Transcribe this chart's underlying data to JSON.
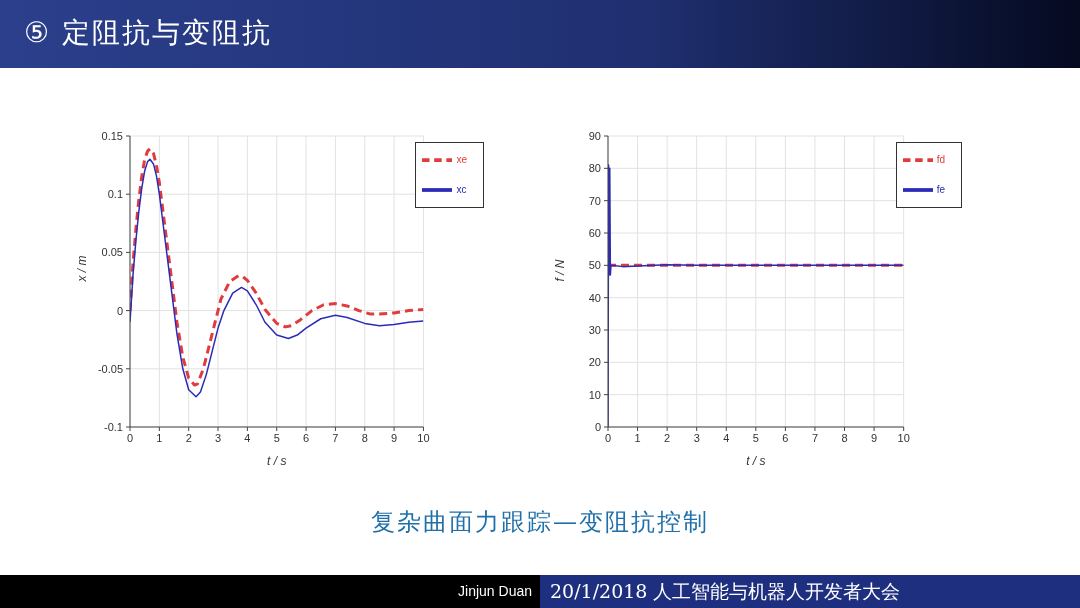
{
  "chart_data": [
    {
      "type": "line",
      "xlabel": "t / s",
      "ylabel": "x / m",
      "xlim": [
        0,
        10
      ],
      "xticks": [
        0,
        1,
        2,
        3,
        4,
        5,
        6,
        7,
        8,
        9,
        10
      ],
      "ylim": [
        -0.1,
        0.15
      ],
      "yticks": [
        -0.1,
        -0.05,
        0,
        0.05,
        0.1,
        0.15
      ],
      "grid": true,
      "legend": "top right",
      "marker": "none",
      "series": [
        {
          "name": "xe",
          "color": "#e03c3c",
          "line_style": "dashed",
          "x": [
            0,
            0.1,
            0.2,
            0.3,
            0.4,
            0.5,
            0.6,
            0.68,
            0.8,
            0.9,
            1.0,
            1.2,
            1.4,
            1.6,
            1.8,
            2.0,
            2.2,
            2.3,
            2.5,
            2.7,
            2.9,
            3.1,
            3.4,
            3.7,
            3.85,
            4.0,
            4.3,
            4.6,
            5.0,
            5.3,
            5.5,
            5.8,
            6.2,
            6.6,
            7.0,
            7.4,
            7.8,
            8.2,
            8.5,
            9.0,
            9.5,
            10
          ],
          "values": [
            0,
            0.04,
            0.07,
            0.095,
            0.115,
            0.13,
            0.137,
            0.139,
            0.135,
            0.125,
            0.11,
            0.07,
            0.03,
            -0.01,
            -0.04,
            -0.058,
            -0.064,
            -0.063,
            -0.05,
            -0.03,
            -0.01,
            0.01,
            0.025,
            0.03,
            0.029,
            0.026,
            0.015,
            0.001,
            -0.011,
            -0.014,
            -0.013,
            -0.008,
            0,
            0.005,
            0.006,
            0.004,
            0,
            -0.003,
            -0.003,
            -0.002,
            0,
            0.001
          ]
        },
        {
          "name": "xc",
          "color": "#2b2bb8",
          "line_style": "solid",
          "x": [
            0,
            0.1,
            0.2,
            0.3,
            0.4,
            0.5,
            0.6,
            0.68,
            0.8,
            0.9,
            1.0,
            1.2,
            1.4,
            1.6,
            1.8,
            2.0,
            2.25,
            2.4,
            2.6,
            2.8,
            3.0,
            3.2,
            3.5,
            3.8,
            4.0,
            4.3,
            4.6,
            5.0,
            5.4,
            5.7,
            6.0,
            6.5,
            7.0,
            7.4,
            8.0,
            8.5,
            9.0,
            9.5,
            10
          ],
          "values": [
            -0.01,
            0.03,
            0.06,
            0.085,
            0.105,
            0.12,
            0.128,
            0.13,
            0.126,
            0.116,
            0.1,
            0.06,
            0.02,
            -0.02,
            -0.05,
            -0.068,
            -0.074,
            -0.07,
            -0.055,
            -0.035,
            -0.015,
            0,
            0.015,
            0.02,
            0.017,
            0.005,
            -0.01,
            -0.021,
            -0.024,
            -0.021,
            -0.015,
            -0.007,
            -0.004,
            -0.006,
            -0.011,
            -0.013,
            -0.012,
            -0.01,
            -0.009
          ]
        }
      ]
    },
    {
      "type": "line",
      "xlabel": "t / s",
      "ylabel": "f / N",
      "xlim": [
        0,
        10
      ],
      "xticks": [
        0,
        1,
        2,
        3,
        4,
        5,
        6,
        7,
        8,
        9,
        10
      ],
      "ylim": [
        0,
        90
      ],
      "yticks": [
        0,
        10,
        20,
        30,
        40,
        50,
        60,
        70,
        80,
        90
      ],
      "grid": true,
      "legend": "top right",
      "marker": "none",
      "series": [
        {
          "name": "fd",
          "color": "#e03c3c",
          "line_style": "dashed",
          "x": [
            0,
            10
          ],
          "values": [
            50,
            50
          ]
        },
        {
          "name": "fe",
          "color": "#2b2bb8",
          "line_style": "solid",
          "x": [
            0,
            0.02,
            0.04,
            0.06,
            0.08,
            0.1,
            0.5,
            1,
            2,
            3,
            10
          ],
          "values": [
            0,
            81,
            47,
            80,
            47,
            50,
            49.6,
            49.8,
            50.2,
            50,
            50
          ]
        }
      ]
    },
    {
      "type": "other",
      "title": "⑤ 定阻抗与变阻抗",
      "annotations": [
        "复杂曲面力跟踪—变阻抗控制",
        "Jinjun Duan",
        "20/1/2018 人工智能与机器人开发者大会"
      ]
    }
  ]
}
